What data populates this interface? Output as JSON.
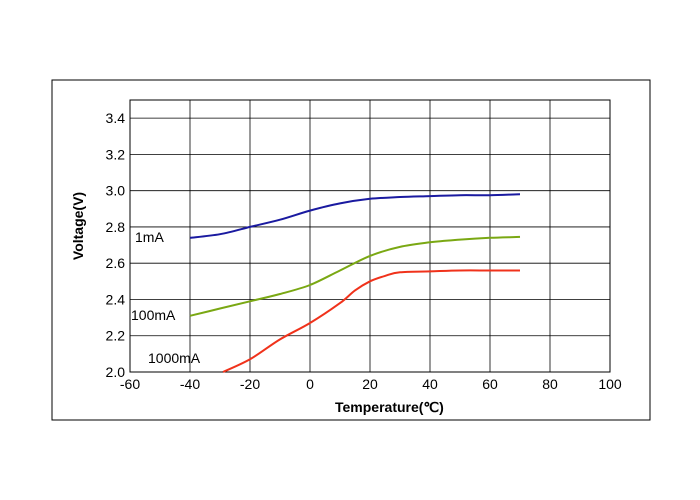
{
  "chart_data": {
    "type": "line",
    "title": "",
    "xlabel": "Temperature(℃)",
    "ylabel": "Voltage(V)",
    "xlim": [
      -60,
      100
    ],
    "ylim": [
      2.0,
      3.5
    ],
    "xticks": [
      -60,
      -40,
      -20,
      0,
      20,
      40,
      60,
      80,
      100
    ],
    "yticks": [
      2.0,
      2.2,
      2.4,
      2.6,
      2.8,
      3.0,
      3.2,
      3.4
    ],
    "ytick_labels": [
      "2.0",
      "2.2",
      "2.4",
      "2.6",
      "2.8",
      "3.0",
      "3.2",
      "3.4"
    ],
    "grid": true,
    "legend": "none",
    "series": [
      {
        "name": "1mA",
        "color": "#1a1aa0",
        "x": [
          -40,
          -30,
          -20,
          -10,
          0,
          10,
          20,
          30,
          40,
          50,
          60,
          70
        ],
        "y": [
          2.74,
          2.76,
          2.8,
          2.84,
          2.89,
          2.93,
          2.955,
          2.965,
          2.97,
          2.975,
          2.975,
          2.98
        ]
      },
      {
        "name": "100mA",
        "color": "#7aa813",
        "x": [
          -40,
          -30,
          -20,
          -10,
          0,
          10,
          20,
          30,
          40,
          50,
          60,
          70
        ],
        "y": [
          2.31,
          2.35,
          2.39,
          2.43,
          2.48,
          2.56,
          2.64,
          2.69,
          2.715,
          2.73,
          2.74,
          2.745
        ]
      },
      {
        "name": "1000mA",
        "color": "#f0321b",
        "x": [
          -29,
          -20,
          -10,
          0,
          10,
          15,
          20,
          25,
          30,
          40,
          50,
          60,
          70
        ],
        "y": [
          2.0,
          2.07,
          2.18,
          2.27,
          2.38,
          2.45,
          2.5,
          2.53,
          2.55,
          2.555,
          2.56,
          2.56,
          2.56
        ]
      }
    ]
  }
}
